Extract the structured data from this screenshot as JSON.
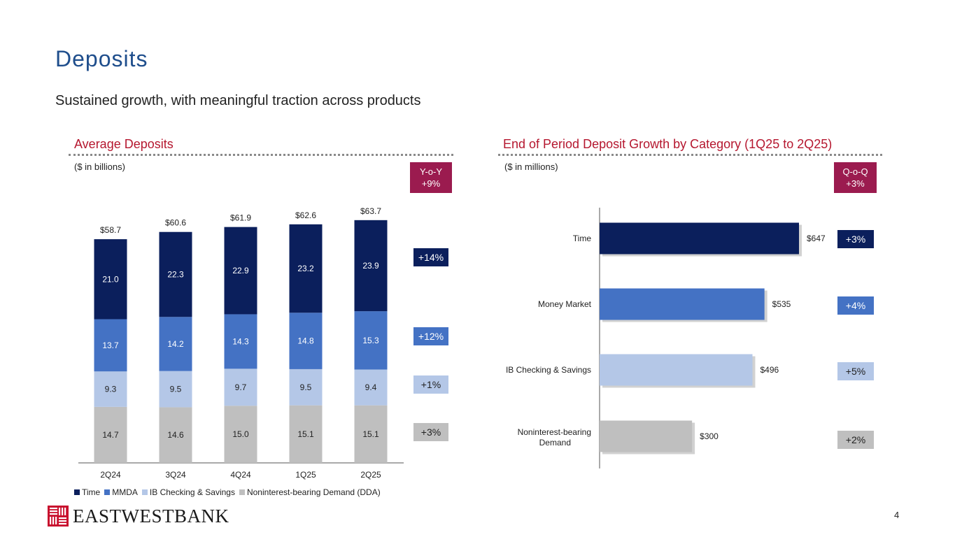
{
  "header": {
    "title": "Deposits",
    "subtitle": "Sustained growth, with meaningful traction across products"
  },
  "left_panel": {
    "title": "Average Deposits",
    "units": "($ in billions)",
    "badge_line1": "Y-o-Y",
    "badge_line2": "+9%",
    "growth": [
      {
        "label": "+14%",
        "series": "Time"
      },
      {
        "label": "+12%",
        "series": "MMDA"
      },
      {
        "label": "+1%",
        "series": "IB Checking & Savings"
      },
      {
        "label": "+3%",
        "series": "Noninterest-bearing Demand (DDA)"
      }
    ]
  },
  "right_panel": {
    "title": "End of Period Deposit Growth by Category (1Q25 to 2Q25)",
    "units": "($ in millions)",
    "badge_line1": "Q-o-Q",
    "badge_line2": "+3%",
    "growth": [
      "+3%",
      "+4%",
      "+5%",
      "+2%"
    ]
  },
  "colors": {
    "time": "#0b1f5c",
    "mmda": "#4472c4",
    "ib": "#b4c7e7",
    "dda": "#bfbfbf",
    "accent_red": "#b5172f",
    "badge": "#9b1b4f",
    "title_blue": "#1f4e8c"
  },
  "chart_data": [
    {
      "type": "bar",
      "stacked": true,
      "title": "Average Deposits",
      "ylabel": "($ in billions)",
      "categories": [
        "2Q24",
        "3Q24",
        "4Q24",
        "1Q25",
        "2Q25"
      ],
      "series": [
        {
          "name": "Noninterest-bearing Demand (DDA)",
          "values": [
            "14.7",
            "14.6",
            "15.0",
            "15.1",
            "15.1"
          ]
        },
        {
          "name": "IB Checking & Savings",
          "values": [
            "9.3",
            "9.5",
            "9.7",
            "9.5",
            "9.4"
          ]
        },
        {
          "name": "MMDA",
          "values": [
            "13.7",
            "14.2",
            "14.3",
            "14.8",
            "15.3"
          ]
        },
        {
          "name": "Time",
          "values": [
            "21.0",
            "22.3",
            "22.9",
            "23.2",
            "23.9"
          ]
        }
      ],
      "totals": [
        "$58.7",
        "$60.6",
        "$61.9",
        "$62.6",
        "$63.7"
      ],
      "legend": [
        "Time",
        "MMDA",
        "IB Checking & Savings",
        "Noninterest-bearing Demand (DDA)"
      ],
      "legend_position": "bottom"
    },
    {
      "type": "bar",
      "orientation": "horizontal",
      "title": "End of Period Deposit Growth by Category (1Q25 to 2Q25)",
      "xlabel": "($ in millions)",
      "categories": [
        "Time",
        "Money Market",
        "IB Checking & Savings",
        "Noninterest-bearing Demand"
      ],
      "values": [
        647,
        535,
        496,
        300
      ],
      "labels": [
        "$647",
        "$535",
        "$496",
        "$300"
      ],
      "xlim": [
        0,
        700
      ]
    }
  ],
  "footer": {
    "logo_text": "EASTWESTBANK",
    "page_number": "4"
  }
}
